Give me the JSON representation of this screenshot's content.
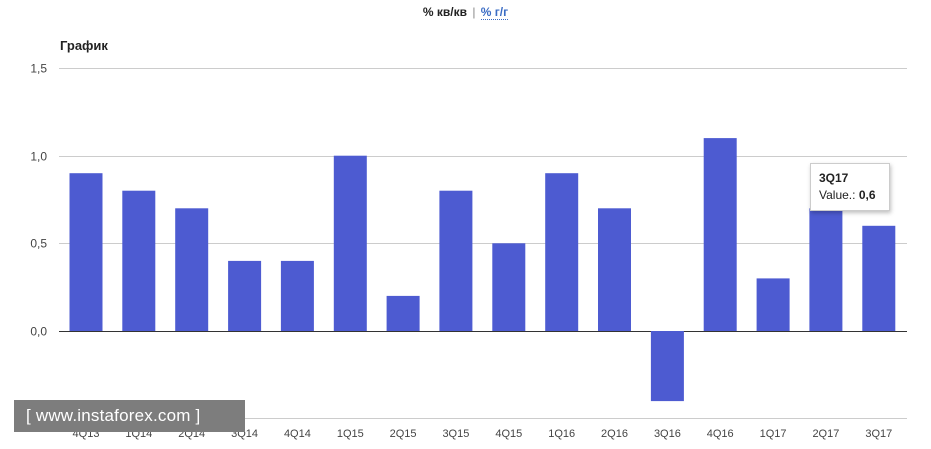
{
  "toggle": {
    "active": "% кв/кв",
    "separator": "|",
    "alt": "% г/г"
  },
  "chart_data": {
    "type": "bar",
    "title": "График",
    "categories": [
      "4Q13",
      "1Q14",
      "2Q14",
      "3Q14",
      "4Q14",
      "1Q15",
      "2Q15",
      "3Q15",
      "4Q15",
      "1Q16",
      "2Q16",
      "3Q16",
      "4Q16",
      "1Q17",
      "2Q17",
      "3Q17"
    ],
    "values": [
      0.9,
      0.8,
      0.7,
      0.4,
      0.4,
      1.0,
      0.2,
      0.8,
      0.5,
      0.9,
      0.7,
      -0.4,
      1.1,
      0.3,
      0.7,
      0.6
    ],
    "yticks": [
      "1,5",
      "1,0",
      "0,5",
      "0,0"
    ],
    "ytick_values": [
      1.5,
      1.0,
      0.5,
      0.0
    ],
    "ylim": [
      -0.5,
      1.5
    ],
    "bar_color": "#4d5bd1",
    "grid": true,
    "tooltip": {
      "category": "3Q17",
      "label": "Value.:",
      "value": "0,6"
    }
  },
  "watermark": {
    "text": "[ www.instaforex.com ]"
  }
}
